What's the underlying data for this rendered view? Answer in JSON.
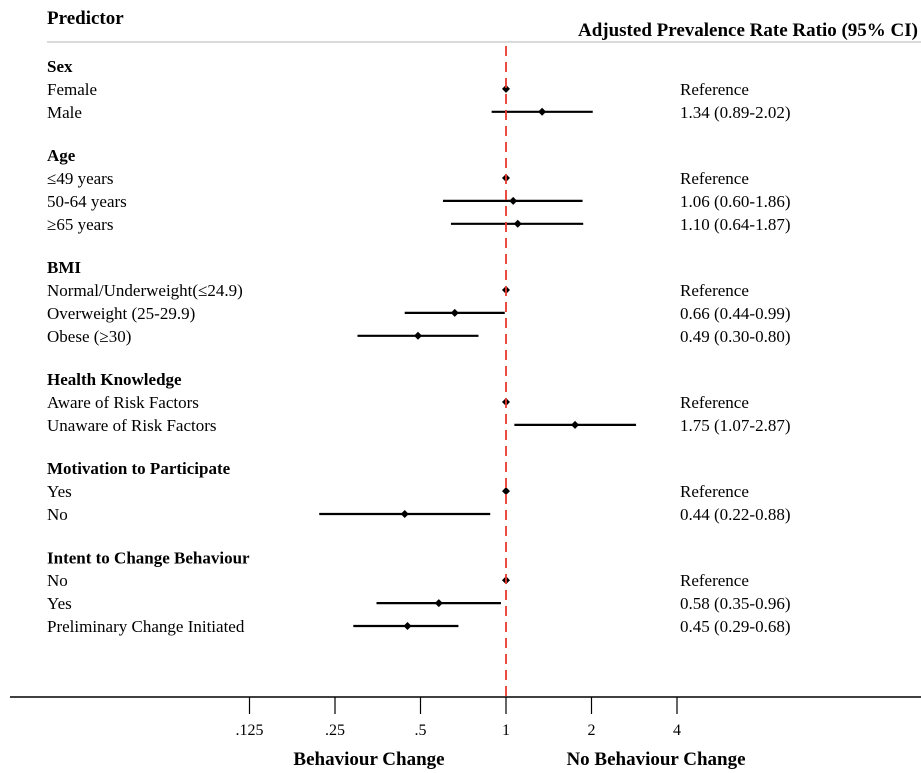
{
  "chart_data": {
    "type": "forest",
    "headers": {
      "predictor": "Predictor",
      "estimate": "Adjusted Prevalence Rate Ratio (95% CI)"
    },
    "x_scale": "log2",
    "xlim": [
      0.1,
      16
    ],
    "reference_line": 1,
    "reference_line_color": "#e8392e",
    "marker_color": "#000000",
    "x_ticks": [
      {
        "value": 0.125,
        "label": ".125"
      },
      {
        "value": 0.25,
        "label": ".25"
      },
      {
        "value": 0.5,
        "label": ".5"
      },
      {
        "value": 1,
        "label": "1"
      },
      {
        "value": 2,
        "label": "2"
      },
      {
        "value": 4,
        "label": "4"
      }
    ],
    "x_label_left": "Behaviour Change",
    "x_label_right": "No Behaviour Change",
    "groups": [
      {
        "name": "Sex",
        "rows": [
          {
            "label": "Female",
            "est": 1,
            "lo": null,
            "hi": null,
            "text": "Reference"
          },
          {
            "label": "Male",
            "est": 1.34,
            "lo": 0.89,
            "hi": 2.02,
            "text": "1.34 (0.89-2.02)"
          }
        ]
      },
      {
        "name": "Age",
        "rows": [
          {
            "label": "≤49 years",
            "est": 1,
            "lo": null,
            "hi": null,
            "text": "Reference"
          },
          {
            "label": "50-64 years",
            "est": 1.06,
            "lo": 0.6,
            "hi": 1.86,
            "text": "1.06 (0.60-1.86)"
          },
          {
            "label": "≥65 years",
            "est": 1.1,
            "lo": 0.64,
            "hi": 1.87,
            "text": "1.10 (0.64-1.87)"
          }
        ]
      },
      {
        "name": "BMI",
        "rows": [
          {
            "label": "Normal/Underweight(≤24.9)",
            "est": 1,
            "lo": null,
            "hi": null,
            "text": "Reference"
          },
          {
            "label": "Overweight (25-29.9)",
            "est": 0.66,
            "lo": 0.44,
            "hi": 0.99,
            "text": "0.66 (0.44-0.99)"
          },
          {
            "label": "Obese (≥30)",
            "est": 0.49,
            "lo": 0.3,
            "hi": 0.8,
            "text": "0.49 (0.30-0.80)"
          }
        ]
      },
      {
        "name": "Health Knowledge",
        "rows": [
          {
            "label": "Aware of Risk Factors",
            "est": 1,
            "lo": null,
            "hi": null,
            "text": "Reference"
          },
          {
            "label": "Unaware of Risk Factors",
            "est": 1.75,
            "lo": 1.07,
            "hi": 2.87,
            "text": "1.75 (1.07-2.87)"
          }
        ]
      },
      {
        "name": "Motivation to Participate",
        "rows": [
          {
            "label": "Yes",
            "est": 1,
            "lo": null,
            "hi": null,
            "text": "Reference"
          },
          {
            "label": "No",
            "est": 0.44,
            "lo": 0.22,
            "hi": 0.88,
            "text": "0.44 (0.22-0.88)"
          }
        ]
      },
      {
        "name": "Intent to Change Behaviour",
        "rows": [
          {
            "label": "No",
            "est": 1,
            "lo": null,
            "hi": null,
            "text": "Reference"
          },
          {
            "label": "Yes",
            "est": 0.58,
            "lo": 0.35,
            "hi": 0.96,
            "text": "0.58 (0.35-0.96)"
          },
          {
            "label": "Preliminary Change Initiated",
            "est": 0.45,
            "lo": 0.29,
            "hi": 0.68,
            "text": "0.45 (0.29-0.68)"
          }
        ]
      }
    ]
  }
}
